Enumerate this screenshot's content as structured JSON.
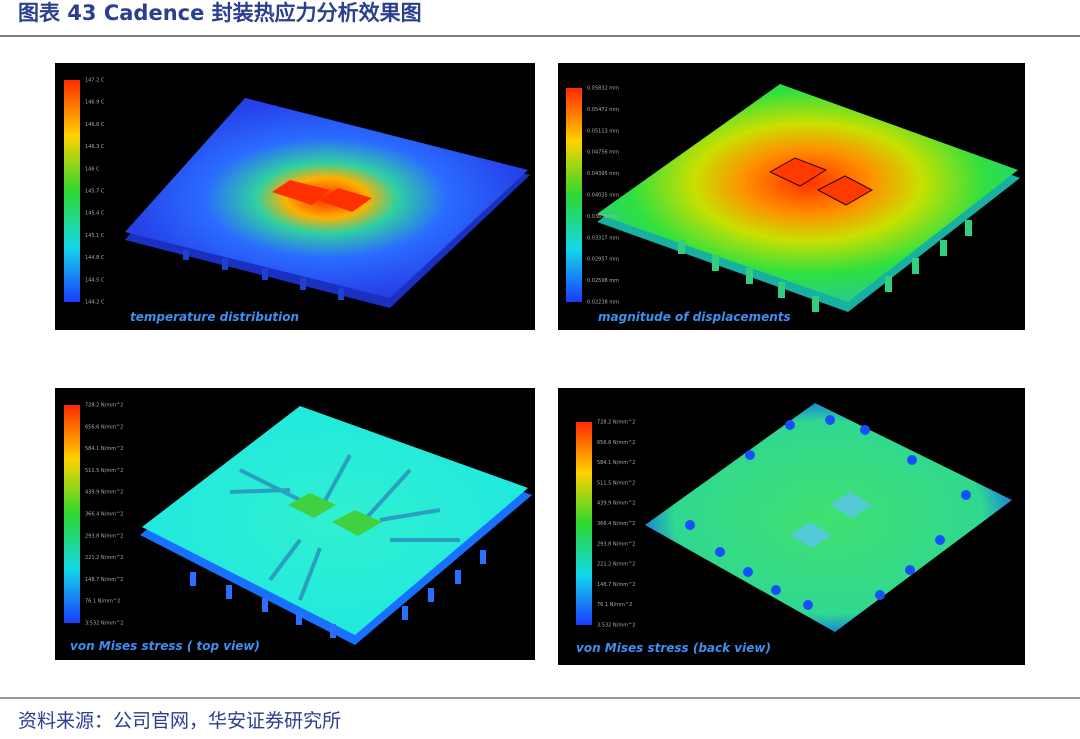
{
  "header": {
    "title": "图表 43 Cadence 封装热应力分析效果图"
  },
  "panels": [
    {
      "caption": "temperature distribution",
      "colorbar_labels": [
        "147.2 C",
        "146.9 C",
        "146.6 C",
        "146.3 C",
        "146 C",
        "145.7 C",
        "145.4 C",
        "145.1 C",
        "144.8 C",
        "144.5 C",
        "144.2 C"
      ]
    },
    {
      "caption": "magnitude of displacements",
      "colorbar_labels": [
        "0.05832 mm",
        "0.05472 mm",
        "0.05113 mm",
        "0.04756 mm",
        "0.04395 mm",
        "0.04035 mm",
        "0.03676 mm",
        "0.03317 mm",
        "0.02957 mm",
        "0.02598 mm",
        "0.02238 mm"
      ]
    },
    {
      "caption": "von Mises stress ( top view)",
      "colorbar_labels": [
        "728.2 N/mm^2",
        "656.6 N/mm^2",
        "584.1 N/mm^2",
        "511.5 N/mm^2",
        "439.9 N/mm^2",
        "366.4 N/mm^2",
        "293.8 N/mm^2",
        "221.2 N/mm^2",
        "148.7 N/mm^2",
        "76.1 N/mm^2",
        "3.532 N/mm^2"
      ]
    },
    {
      "caption": "von Mises stress (back view)",
      "colorbar_labels": [
        "728.2 N/mm^2",
        "656.6 N/mm^2",
        "584.1 N/mm^2",
        "511.5 N/mm^2",
        "439.9 N/mm^2",
        "366.4 N/mm^2",
        "293.8 N/mm^2",
        "221.2 N/mm^2",
        "148.7 N/mm^2",
        "76.1 N/mm^2",
        "3.532 N/mm^2"
      ]
    }
  ],
  "source": "资料来源：公司官网，华安证券研究所"
}
